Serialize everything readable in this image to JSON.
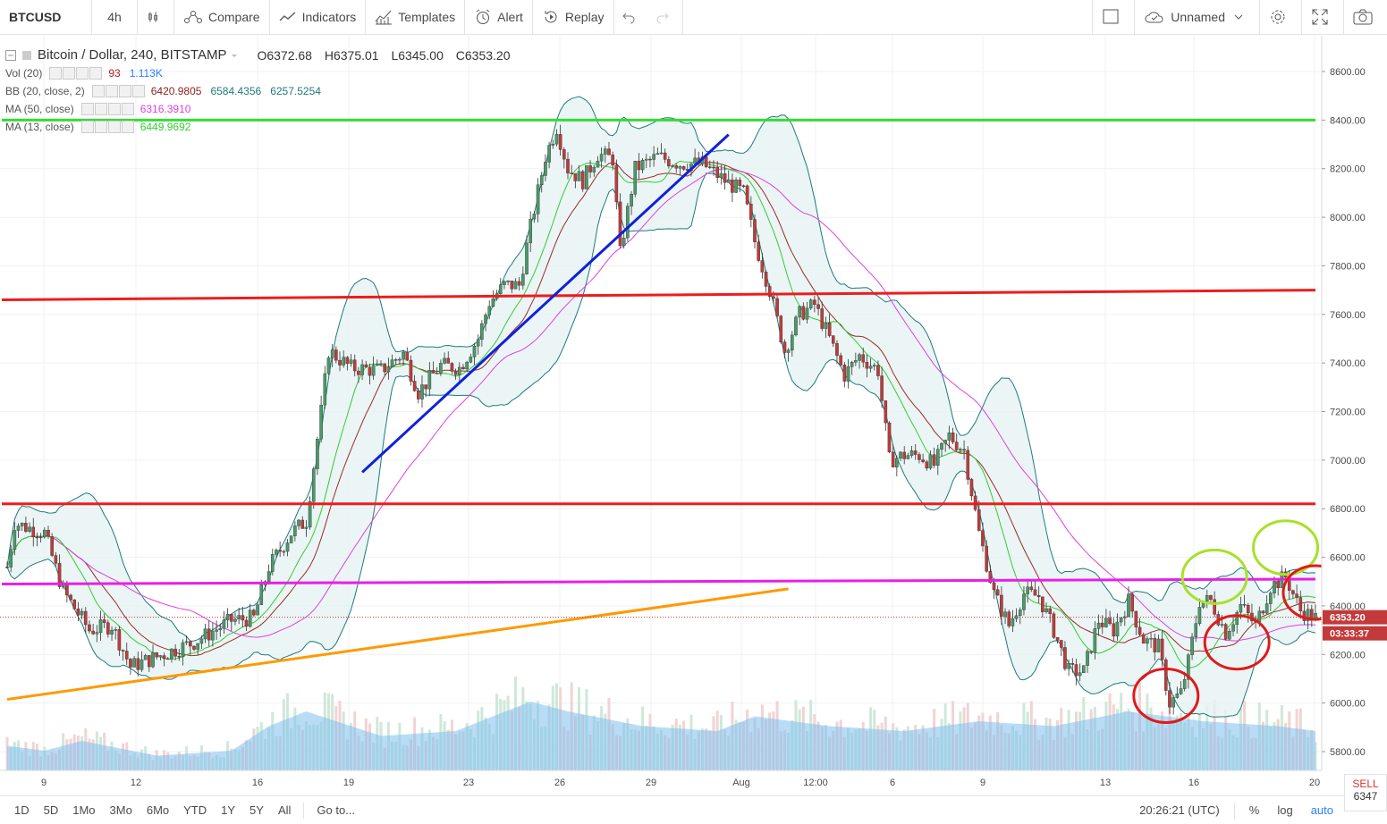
{
  "toolbar": {
    "symbol": "BTCUSD",
    "interval": "4h",
    "compare": "Compare",
    "indicators": "Indicators",
    "templates": "Templates",
    "alert": "Alert",
    "replay": "Replay",
    "layout_name": "Unnamed"
  },
  "legend": {
    "title": "Bitcoin / Dollar, 240, BITSTAMP",
    "open": "O6372.68",
    "high": "H6375.01",
    "low": "L6345.00",
    "close": "C6353.20",
    "indicators": [
      {
        "label": "Vol (20)",
        "values": [
          "93",
          "1.113K"
        ]
      },
      {
        "label": "BB (20, close, 2)",
        "values": [
          "6420.9805",
          "6584.4356",
          "6257.5254"
        ]
      },
      {
        "label": "MA (50, close)",
        "values": [
          "6316.3910"
        ]
      },
      {
        "label": "MA (13, close)",
        "values": [
          "6449.9692"
        ]
      }
    ]
  },
  "colors": {
    "up": "#53b987",
    "down": "#eb4d5c",
    "bb": "#1e7a7a",
    "bbfill": "#e6f2f2",
    "ma50": "#e040e0",
    "ma13": "#33cc33",
    "ma20": "#9c2a2a",
    "vol": "#7fbfef"
  },
  "chart_data": {
    "type": "candlestick",
    "symbol": "BTCUSD",
    "timeframe": "240",
    "ylim": [
      5720,
      8680
    ],
    "yticks": [
      "8600.00",
      "8400.00",
      "8200.00",
      "8000.00",
      "7800.00",
      "7600.00",
      "7400.00",
      "7200.00",
      "7000.00",
      "6800.00",
      "6600.00",
      "6400.00",
      "6200.00",
      "6000.00",
      "5800.00"
    ],
    "xticks": [
      "9",
      "12",
      "16",
      "19",
      "23",
      "26",
      "29",
      "Aug",
      "12:00",
      "6",
      "9",
      "13",
      "16",
      "20"
    ],
    "price_keypoints": [
      [
        0,
        6560
      ],
      [
        2,
        6740
      ],
      [
        6,
        6720
      ],
      [
        10,
        6700
      ],
      [
        15,
        6460
      ],
      [
        22,
        6300
      ],
      [
        28,
        6320
      ],
      [
        33,
        6150
      ],
      [
        40,
        6190
      ],
      [
        50,
        6250
      ],
      [
        60,
        6340
      ],
      [
        66,
        6350
      ],
      [
        70,
        6560
      ],
      [
        76,
        6700
      ],
      [
        80,
        6750
      ],
      [
        84,
        7200
      ],
      [
        86,
        7450
      ],
      [
        92,
        7380
      ],
      [
        100,
        7370
      ],
      [
        106,
        7440
      ],
      [
        110,
        7280
      ],
      [
        116,
        7390
      ],
      [
        121,
        7380
      ],
      [
        126,
        7500
      ],
      [
        129,
        7650
      ],
      [
        133,
        7720
      ],
      [
        137,
        7720
      ],
      [
        140,
        7960
      ],
      [
        144,
        8250
      ],
      [
        147,
        8370
      ],
      [
        150,
        8200
      ],
      [
        154,
        8150
      ],
      [
        158,
        8260
      ],
      [
        162,
        8240
      ],
      [
        164,
        7850
      ],
      [
        168,
        8200
      ],
      [
        174,
        8250
      ],
      [
        180,
        8220
      ],
      [
        186,
        8220
      ],
      [
        192,
        8150
      ],
      [
        197,
        8100
      ],
      [
        200,
        7900
      ],
      [
        204,
        7700
      ],
      [
        208,
        7450
      ],
      [
        212,
        7600
      ],
      [
        216,
        7640
      ],
      [
        220,
        7500
      ],
      [
        224,
        7350
      ],
      [
        228,
        7430
      ],
      [
        233,
        7370
      ],
      [
        236,
        7000
      ],
      [
        240,
        7020
      ],
      [
        244,
        7020
      ],
      [
        248,
        6980
      ],
      [
        252,
        7100
      ],
      [
        256,
        7040
      ],
      [
        260,
        6700
      ],
      [
        264,
        6450
      ],
      [
        268,
        6320
      ],
      [
        272,
        6450
      ],
      [
        276,
        6440
      ],
      [
        280,
        6300
      ],
      [
        284,
        6130
      ],
      [
        288,
        6130
      ],
      [
        292,
        6340
      ],
      [
        296,
        6300
      ],
      [
        300,
        6420
      ],
      [
        304,
        6260
      ],
      [
        308,
        6230
      ],
      [
        311,
        6000
      ],
      [
        314,
        6040
      ],
      [
        316,
        6170
      ],
      [
        319,
        6420
      ],
      [
        322,
        6420
      ],
      [
        326,
        6290
      ],
      [
        330,
        6400
      ],
      [
        334,
        6320
      ],
      [
        338,
        6480
      ],
      [
        342,
        6520
      ],
      [
        346,
        6380
      ],
      [
        350,
        6350
      ]
    ],
    "volume_keypoints": [
      [
        0,
        50
      ],
      [
        10,
        40
      ],
      [
        20,
        60
      ],
      [
        40,
        30
      ],
      [
        60,
        40
      ],
      [
        70,
        90
      ],
      [
        80,
        120
      ],
      [
        100,
        70
      ],
      [
        120,
        80
      ],
      [
        140,
        140
      ],
      [
        150,
        120
      ],
      [
        170,
        90
      ],
      [
        190,
        80
      ],
      [
        200,
        110
      ],
      [
        220,
        90
      ],
      [
        240,
        80
      ],
      [
        260,
        100
      ],
      [
        280,
        90
      ],
      [
        300,
        120
      ],
      [
        320,
        100
      ],
      [
        340,
        90
      ],
      [
        350,
        80
      ]
    ],
    "horizontal_lines": [
      {
        "price": 8400,
        "color": "#33dd33"
      },
      {
        "price": 7660,
        "price_end": 7700,
        "color": "#ee1c1c"
      },
      {
        "price": 6820,
        "color": "#ee1c1c"
      },
      {
        "price": 6490,
        "price_end": 6510,
        "color": "#e81ee8"
      }
    ],
    "trend_lines": [
      {
        "from": [
          0,
          6015
        ],
        "to": [
          209,
          6470
        ],
        "color": "#ff9900"
      },
      {
        "from": [
          95,
          6950
        ],
        "to": [
          193,
          8340
        ],
        "color": "#1020dd"
      }
    ],
    "circles": [
      {
        "bar": 323,
        "price": 6520,
        "color": "#a8e02a"
      },
      {
        "bar": 342,
        "price": 6640,
        "color": "#a8e02a"
      },
      {
        "bar": 350,
        "price": 6455,
        "color": "#e01a1a"
      },
      {
        "bar": 329,
        "price": 6250,
        "color": "#e01a1a"
      },
      {
        "bar": 310,
        "price": 6030,
        "color": "#e01a1a"
      }
    ],
    "last_price": "6353.20",
    "countdown": "03:33:37"
  },
  "bottom": {
    "ranges": [
      "1D",
      "5D",
      "1Mo",
      "3Mo",
      "6Mo",
      "YTD",
      "1Y",
      "5Y",
      "All"
    ],
    "goto": "Go to...",
    "time": "20:26:21 (UTC)",
    "percent": "%",
    "log": "log",
    "auto": "auto",
    "sell_label": "SELL",
    "sell_price": "6347"
  }
}
